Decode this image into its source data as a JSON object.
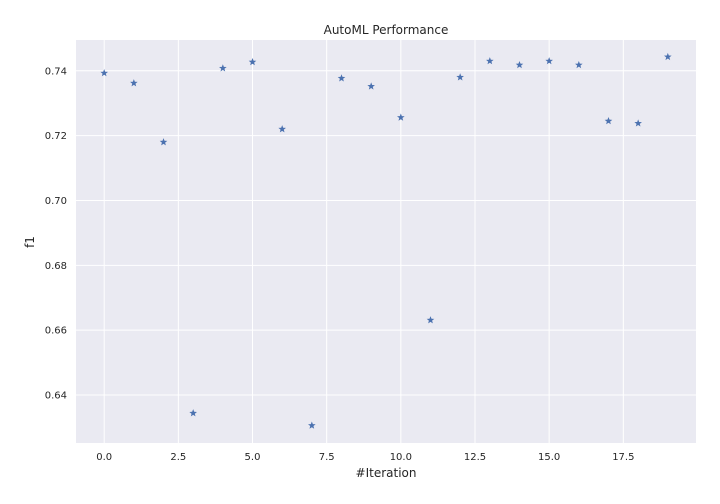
{
  "chart_data": {
    "type": "scatter",
    "title": "AutoML Performance",
    "xlabel": "#Iteration",
    "ylabel": "f1",
    "xlim": [
      -0.95,
      19.95
    ],
    "ylim": [
      0.6252,
      0.7495
    ],
    "xticks": [
      0.0,
      2.5,
      5.0,
      7.5,
      10.0,
      12.5,
      15.0,
      17.5
    ],
    "xtick_labels": [
      "0.0",
      "2.5",
      "5.0",
      "7.5",
      "10.0",
      "12.5",
      "15.0",
      "17.5"
    ],
    "yticks": [
      0.64,
      0.66,
      0.68,
      0.7,
      0.72,
      0.74
    ],
    "ytick_labels": [
      "0.64",
      "0.66",
      "0.68",
      "0.70",
      "0.72",
      "0.74"
    ],
    "grid": true,
    "marker": "star",
    "colors": {
      "background": "#eaeaf2",
      "grid": "#ffffff",
      "marker": "#4c72b0"
    },
    "x": [
      0,
      1,
      2,
      3,
      4,
      5,
      6,
      7,
      8,
      9,
      10,
      11,
      12,
      13,
      14,
      15,
      16,
      17,
      18,
      19
    ],
    "y": [
      0.7393,
      0.7362,
      0.718,
      0.6344,
      0.7408,
      0.7427,
      0.722,
      0.6306,
      0.7377,
      0.7352,
      0.7256,
      0.6631,
      0.738,
      0.743,
      0.7418,
      0.743,
      0.7418,
      0.7245,
      0.7238,
      0.7443
    ]
  }
}
